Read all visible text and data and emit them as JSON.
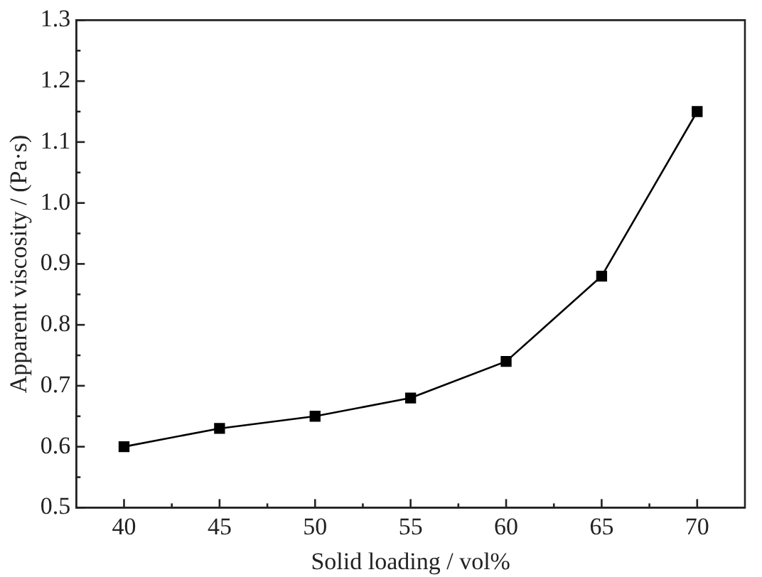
{
  "chart_data": {
    "type": "line",
    "xlabel": "Solid loading / vol%",
    "ylabel": "Apparent viscosity / (Pa·s)",
    "x": [
      40,
      45,
      50,
      55,
      60,
      65,
      70
    ],
    "series": [
      {
        "color": "#000000",
        "values": [
          0.6,
          0.63,
          0.65,
          0.68,
          0.74,
          0.88,
          1.15
        ]
      }
    ],
    "xlim": [
      37.5,
      72.5
    ],
    "xticks": [
      40,
      {
        "value": 42.5,
        "label": null
      },
      45,
      {
        "value": 47.5,
        "label": null
      },
      50,
      {
        "value": 52.5,
        "label": null
      },
      55,
      {
        "value": 57.5,
        "label": null
      },
      60,
      {
        "value": 62.5,
        "label": null
      },
      65,
      {
        "value": 67.5,
        "label": null
      },
      70
    ],
    "ylim": [
      0.5,
      1.3
    ],
    "yticks": [
      0.5,
      {
        "value": 0.55,
        "label": null
      },
      0.6,
      {
        "value": 0.65,
        "label": null
      },
      0.7,
      {
        "value": 0.75,
        "label": null
      },
      0.8,
      {
        "value": 0.85,
        "label": null
      },
      0.9,
      {
        "value": 0.95,
        "label": null
      },
      {
        "value": 1,
        "label": "1.0"
      },
      {
        "value": 1.05,
        "label": null
      },
      1.1,
      {
        "value": 1.15,
        "label": null
      },
      1.2,
      {
        "value": 1.25,
        "label": null
      },
      1.3
    ],
    "grid": false,
    "legend": false,
    "marker": "square",
    "line_style": "solid"
  }
}
